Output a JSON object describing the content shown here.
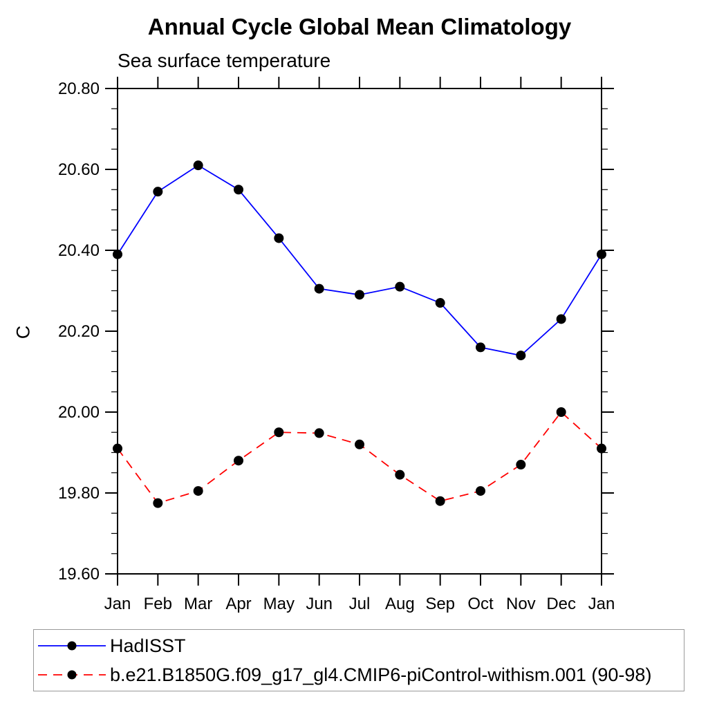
{
  "page": {
    "background_color": "#ffffff",
    "text_color": "#000000"
  },
  "chart_data": {
    "type": "line",
    "title": "Annual Cycle Global Mean Climatology",
    "subtitle": "Sea surface temperature",
    "ylabel": "C",
    "xlabel": "",
    "x_tick_labels": [
      "Jan",
      "Feb",
      "Mar",
      "Apr",
      "May",
      "Jun",
      "Jul",
      "Aug",
      "Sep",
      "Oct",
      "Nov",
      "Dec",
      "Jan"
    ],
    "ylim": [
      19.6,
      20.8
    ],
    "y_major_step": 0.2,
    "y_minor_step": 0.05,
    "y_tick_labels": [
      "19.60",
      "19.80",
      "20.00",
      "20.20",
      "20.40",
      "20.60",
      "20.80"
    ],
    "grid": false,
    "legend_position": "bottom-left-box",
    "marker": "filled-circle",
    "marker_color": "#000000",
    "series": [
      {
        "name": "HadISST",
        "color": "#0000ff",
        "line_style": "solid",
        "marker_color": "#000000",
        "values": [
          20.39,
          20.545,
          20.61,
          20.55,
          20.43,
          20.305,
          20.29,
          20.31,
          20.27,
          20.16,
          20.14,
          20.23,
          20.39
        ]
      },
      {
        "name": "b.e21.B1850G.f09_g17_gl4.CMIP6-piControl-withism.001 (90-98)",
        "color": "#ff0000",
        "line_style": "dashed",
        "marker_color": "#000000",
        "values": [
          19.91,
          19.775,
          19.805,
          19.88,
          19.95,
          19.948,
          19.92,
          19.845,
          19.78,
          19.805,
          19.87,
          20.0,
          19.91
        ]
      }
    ]
  }
}
